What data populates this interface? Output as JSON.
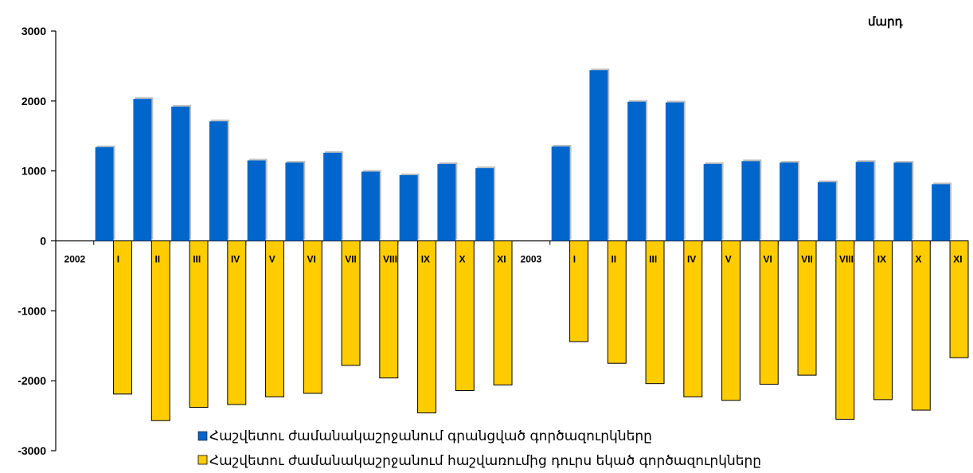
{
  "chart_data": {
    "type": "bar",
    "unit_label": "մարդ",
    "ylim": [
      -3000,
      3000
    ],
    "yticks": [
      3000,
      2000,
      1000,
      0,
      -1000,
      -2000,
      -3000
    ],
    "ytick_labels": [
      "3000",
      "2000",
      "1000",
      "0",
      "-1000",
      "-2000",
      "-3000"
    ],
    "categories": [
      "2002",
      "I",
      "II",
      "III",
      "IV",
      "V",
      "VI",
      "VII",
      "VIII",
      "IX",
      "X",
      "XI",
      "2003",
      "I",
      "II",
      "III",
      "IV",
      "V",
      "VI",
      "VII",
      "VIII",
      "IX",
      "X",
      "XI"
    ],
    "series": [
      {
        "name": "Հաշվետու ժամանակաշրջանում գրանցված գործազուրկները",
        "color": "#0066CC",
        "values": [
          null,
          1340,
          2030,
          1920,
          1710,
          1150,
          1120,
          1260,
          990,
          940,
          1100,
          1040,
          null,
          1350,
          2440,
          1990,
          1980,
          1100,
          1140,
          1120,
          840,
          1130,
          1120,
          810
        ]
      },
      {
        "name": "Հաշվետու ժամանակաշրջանում հաշվառումից դուրս եկած գործազուրկները",
        "color": "#FFCC00",
        "values": [
          null,
          -2190,
          -2570,
          -2380,
          -2340,
          -2230,
          -2180,
          -1780,
          -1960,
          -2460,
          -2140,
          -2060,
          null,
          -1440,
          -1750,
          -2040,
          -2230,
          -2280,
          -2050,
          -1920,
          -2550,
          -2270,
          -2420,
          -1670
        ]
      }
    ],
    "grid": false,
    "legend_position": "bottom"
  }
}
